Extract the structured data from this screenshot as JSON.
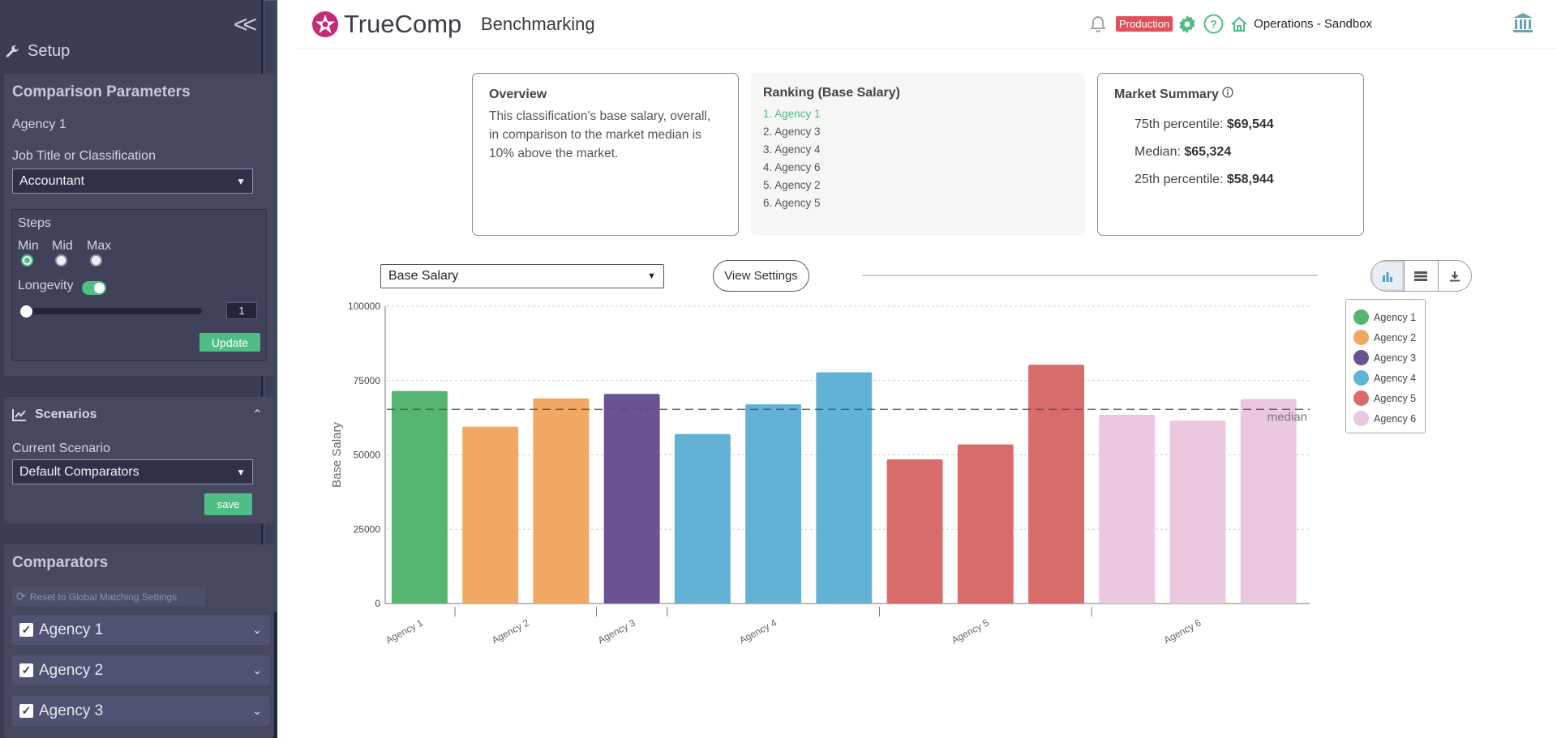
{
  "sidebar": {
    "setup_title": "Setup",
    "comparison": {
      "title": "Comparison Parameters",
      "agency": "Agency 1",
      "job_label": "Job Title or Classification",
      "job_value": "Accountant",
      "steps_label": "Steps",
      "step_options": [
        "Min",
        "Mid",
        "Max"
      ],
      "selected_step": "Min",
      "longevity_label": "Longevity",
      "longevity_on": true,
      "longevity_value": "1",
      "update_label": "Update"
    },
    "scenarios": {
      "title": "Scenarios",
      "current_label": "Current Scenario",
      "current_value": "Default Comparators",
      "save_label": "save"
    },
    "comparators": {
      "title": "Comparators",
      "reset_label": "Reset to Global Matching Settings",
      "items": [
        "Agency 1",
        "Agency 2",
        "Agency 3"
      ]
    }
  },
  "header": {
    "brand": "TrueComp",
    "page": "Benchmarking",
    "environment": "Production",
    "org": "Operations - Sandbox"
  },
  "overview": {
    "title": "Overview",
    "text": "This classification's base salary, overall, in comparison to the market median is 10% above the market."
  },
  "ranking": {
    "title": "Ranking (Base Salary)",
    "items": [
      "1. Agency 1",
      "2. Agency 3",
      "3. Agency 4",
      "4. Agency 6",
      "5. Agency 2",
      "6. Agency 5"
    ]
  },
  "market": {
    "title": "Market Summary",
    "p75_label": "75th percentile:",
    "p75": "$69,544",
    "median_label": "Median:",
    "median": "$65,324",
    "p25_label": "25th percentile:",
    "p25": "$58,944"
  },
  "toolbar": {
    "metric": "Base Salary",
    "view_settings": "View Settings"
  },
  "colors": {
    "accent": "#4fbd86",
    "agency1": "#57b572",
    "agency2": "#f0a862",
    "agency3": "#6b5393",
    "agency4": "#62b2d6",
    "agency5": "#d86c6a",
    "agency6": "#e9c8e0"
  },
  "chart_data": {
    "type": "bar",
    "ylabel": "Base Salary",
    "ylim": [
      0,
      100000
    ],
    "yticks": [
      0,
      25000,
      50000,
      75000,
      100000
    ],
    "median_line": 65324,
    "median_label": "median",
    "groups": [
      {
        "name": "Agency 1",
        "color": "#57b572",
        "values": [
          71500
        ]
      },
      {
        "name": "Agency 2",
        "color": "#f0a862",
        "values": [
          59500,
          69000
        ]
      },
      {
        "name": "Agency 3",
        "color": "#6b5393",
        "values": [
          70500
        ]
      },
      {
        "name": "Agency 4",
        "color": "#62b2d6",
        "values": [
          57000,
          67000,
          77800
        ]
      },
      {
        "name": "Agency 5",
        "color": "#d86c6a",
        "values": [
          48500,
          53500,
          80300
        ]
      },
      {
        "name": "Agency 6",
        "color": "#e9c8e0",
        "values": [
          63500,
          61500,
          68800
        ]
      }
    ],
    "legend": [
      "Agency 1",
      "Agency 2",
      "Agency 3",
      "Agency 4",
      "Agency 5",
      "Agency 6"
    ],
    "legend_position": "right",
    "grid": true
  }
}
